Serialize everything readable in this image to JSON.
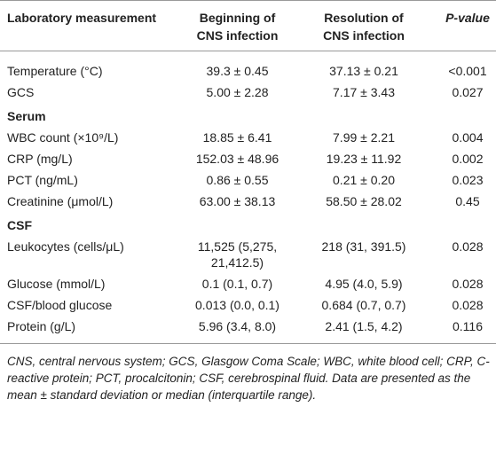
{
  "table": {
    "header": [
      "Laboratory measurement",
      "Beginning of CNS infection",
      "Resolution of CNS infection",
      "P-value"
    ],
    "groups": [
      {
        "rows": [
          [
            "Temperature (°C)",
            "39.3 ± 0.45",
            "37.13 ± 0.21",
            "<0.001"
          ],
          [
            "GCS",
            "5.00 ± 2.28",
            "7.17 ± 3.43",
            "0.027"
          ]
        ]
      },
      {
        "title": "Serum",
        "rows": [
          [
            "WBC count (×10⁹/L)",
            "18.85 ± 6.41",
            "7.99 ± 2.21",
            "0.004"
          ],
          [
            "CRP (mg/L)",
            "152.03 ± 48.96",
            "19.23 ± 11.92",
            "0.002"
          ],
          [
            "PCT (ng/mL)",
            "0.86 ± 0.55",
            "0.21 ± 0.20",
            "0.023"
          ],
          [
            "Creatinine (μmol/L)",
            "63.00 ± 38.13",
            "58.50 ± 28.02",
            "0.45"
          ]
        ]
      },
      {
        "title": "CSF",
        "rows": [
          [
            "Leukocytes (cells/μL)",
            "11,525 (5,275, 21,412.5)",
            "218 (31, 391.5)",
            "0.028"
          ],
          [
            "Glucose (mmol/L)",
            "0.1 (0.1, 0.7)",
            "4.95 (4.0, 5.9)",
            "0.028"
          ],
          [
            "CSF/blood glucose",
            "0.013 (0.0, 0.1)",
            "0.684 (0.7, 0.7)",
            "0.028"
          ],
          [
            "Protein (g/L)",
            "5.96 (3.4, 8.0)",
            "2.41 (1.5, 4.2)",
            "0.116"
          ]
        ]
      }
    ],
    "footnote": "CNS, central nervous system; GCS, Glasgow Coma Scale; WBC, white blood cell; CRP, C-reactive protein; PCT, procalcitonin; CSF, cerebrospinal fluid. Data are presented as the mean ± standard deviation or median (interquartile range)."
  }
}
